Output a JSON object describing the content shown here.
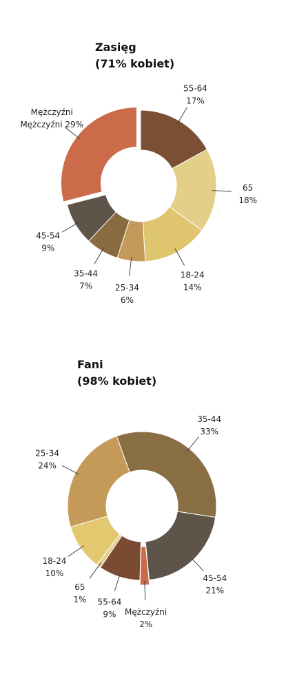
{
  "chart_data": [
    {
      "type": "donut",
      "title": "Zasięg",
      "subtitle": "(71% kobiet)",
      "categories": [
        "55-64",
        "65",
        "18-24",
        "25-34",
        "35-44",
        "45-54",
        "Mężczyźni"
      ],
      "values": [
        17,
        18,
        14,
        6,
        7,
        9,
        29
      ],
      "value_labels": [
        "17%",
        "18%",
        "14%",
        "6%",
        "7%",
        "9%",
        "Mężczyźni 29%"
      ],
      "colors": [
        "#7b4f33",
        "#e3cf87",
        "#dfc56e",
        "#c4995a",
        "#8a6a3f",
        "#5e5449",
        "#cc6b4a"
      ],
      "exploded_category": "Mężczyźni"
    },
    {
      "type": "donut",
      "title": "Fani",
      "subtitle": "(98% kobiet)",
      "categories": [
        "35-44",
        "45-54",
        "Mężczyźni",
        "55-64",
        "65",
        "18-24",
        "25-34"
      ],
      "values": [
        33,
        21,
        2,
        9,
        1,
        10,
        24
      ],
      "value_labels": [
        "33%",
        "21%",
        "2%",
        "9%",
        "1%",
        "10%",
        "24%"
      ],
      "colors": [
        "#8a6e43",
        "#5e5449",
        "#cc6b4a",
        "#7b4a33",
        "#e3cf87",
        "#e2c86e",
        "#c59a58"
      ],
      "exploded_category": "Mężczyźni"
    }
  ]
}
